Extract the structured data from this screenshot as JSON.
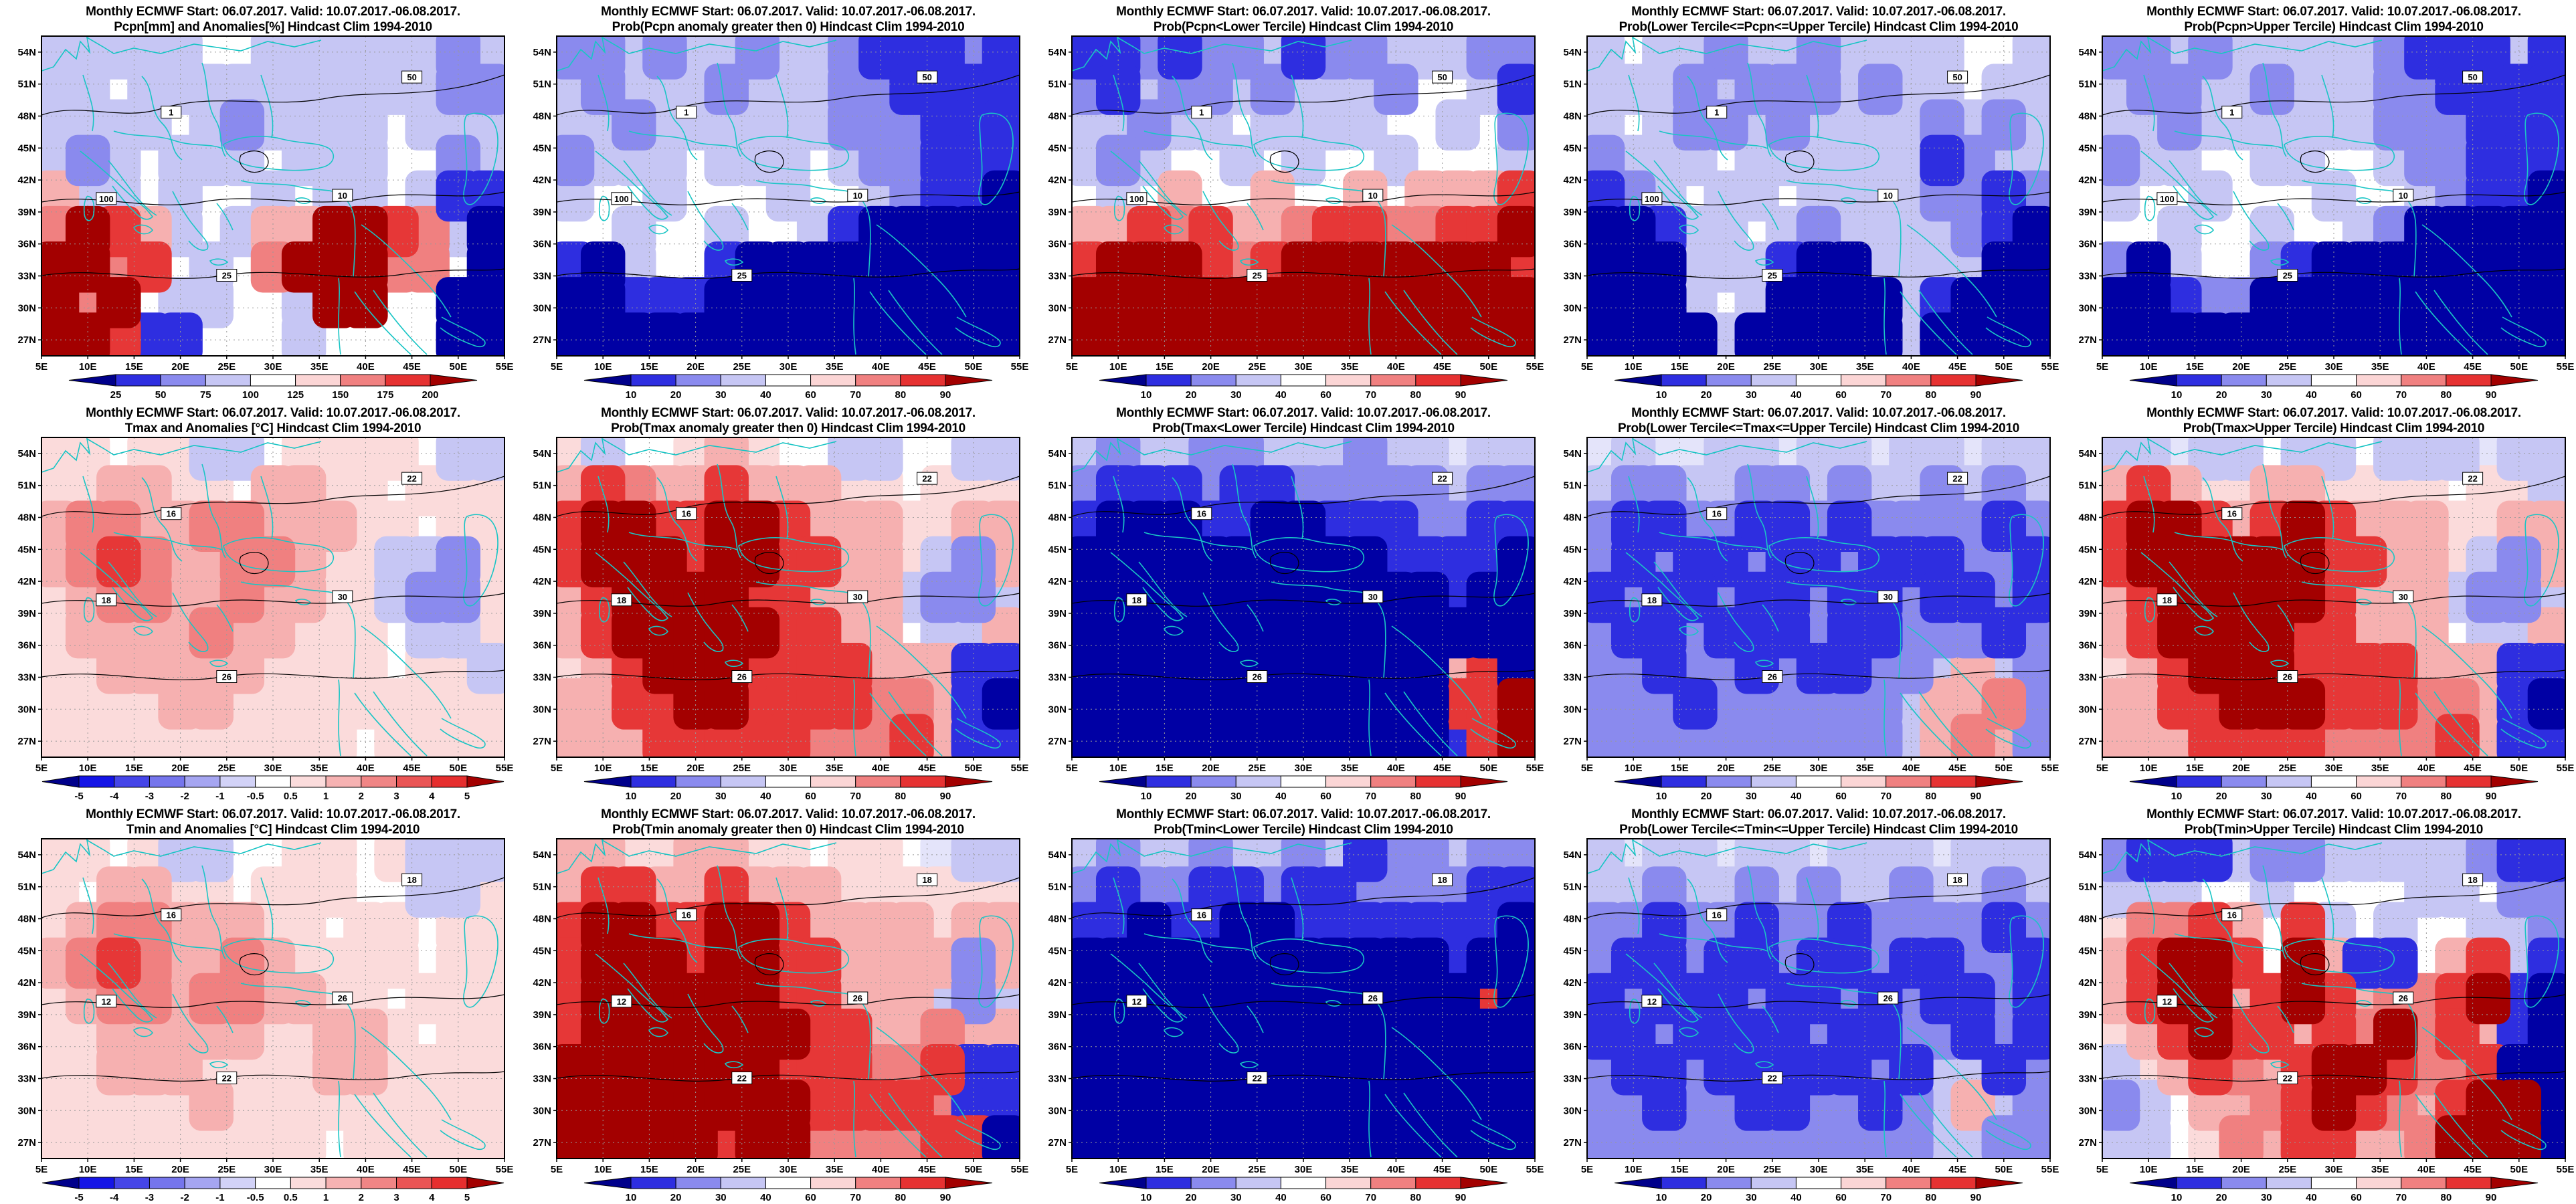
{
  "header_title": "Monthly ECMWF Start: 06.07.2017. Valid: 10.07.2017.-06.08.2017.",
  "axes": {
    "lat_ticks": [
      "54N",
      "51N",
      "48N",
      "45N",
      "42N",
      "39N",
      "36N",
      "33N",
      "30N",
      "27N"
    ],
    "lon_ticks": [
      "5E",
      "10E",
      "15E",
      "20E",
      "25E",
      "30E",
      "35E",
      "40E",
      "45E",
      "50E",
      "55E"
    ]
  },
  "colors": {
    "coastline": "#1AC5C5",
    "graticule": "#999999",
    "contour": "#000000"
  },
  "palette": {
    ".": "#FFFFFF",
    "a": "#E4E4FA",
    "b": "#C6C6F4",
    "c": "#8A8AEE",
    "d": "#2E2EE0",
    "e": "#0000A4",
    "p": "#FBDBDB",
    "q": "#F6B0B0",
    "r": "#F08080",
    "s": "#E63737",
    "t": "#A30000"
  },
  "colorbars": {
    "pcpn": {
      "ticks": [
        "25",
        "50",
        "75",
        "100",
        "125",
        "150",
        "175",
        "200"
      ],
      "segment_colors": [
        "#2E2EE0",
        "#8A8AEE",
        "#C6C6F4",
        "#FFFFFF",
        "#FBD5D5",
        "#F08080",
        "#E63232"
      ],
      "arrow_left": "#00008B",
      "arrow_right": "#A30000"
    },
    "prob": {
      "ticks": [
        "10",
        "20",
        "30",
        "40",
        "60",
        "70",
        "80",
        "90"
      ],
      "segment_colors": [
        "#2E2EE0",
        "#8A8AEE",
        "#C6C6F4",
        "#FFFFFF",
        "#FBD5D5",
        "#F08080",
        "#E63232"
      ],
      "arrow_left": "#00008B",
      "arrow_right": "#A30000"
    },
    "temp": {
      "ticks": [
        "-5",
        "-4",
        "-3",
        "-2",
        "-1",
        "-0.5",
        "0.5",
        "1",
        "2",
        "3",
        "4",
        "5"
      ],
      "segment_colors": [
        "#1414E6",
        "#4545E8",
        "#7575EC",
        "#A5A5F1",
        "#D2D2F7",
        "#FFFFFF",
        "#FBDCDC",
        "#F6B2B2",
        "#F08585",
        "#EA5555",
        "#E62E2E"
      ],
      "arrow_left": "#00008B",
      "arrow_right": "#A30000"
    }
  },
  "panels": [
    {
      "subtitle": "Pcpn[mm] and Anomalies[%] Hindcast Clim 1994-2010",
      "colorbar": "pcpn",
      "contour_labels": [
        "50",
        "100",
        "25",
        "10",
        "1"
      ],
      "field": [
        "bbbbb..bbbbbbcb",
        "bb.bbbbbbbbbbcc",
        "bbbb.bcbbbb.bbb",
        "bcb.bbb.bbb..cb",
        "qbb.b..b.bb.bdd",
        "rtsqb.bqqttsrbe",
        "ttrs.b.rtttrr.e",
        "trt.bb..btt..ee",
        "ttsdd...b....ee"
      ]
    },
    {
      "subtitle": "Prob(Pcpn anomaly greater then 0) Hindcast Clim 1994-2010",
      "colorbar": "prob",
      "contour_labels": [
        "50",
        "100",
        "25",
        "10",
        "1"
      ],
      "field": [
        "ccbcbbcbbcdddcd",
        "bcbbbcbbbccdddd",
        "bbcbbbbbbcccddd",
        "cbbb.bbb.bccddd",
        "b..b...b..bcdde",
        "..b..b..bdeeeee",
        "deb..deeeeeeeee",
        "eedddeeeeeeeeee",
        "eeeeeeeeeeeeeee"
      ]
    },
    {
      "subtitle": "Prob(Pcpn<Lower Tercile) Hindcast Clim 1994-2010",
      "colorbar": "prob",
      "contour_labels": [
        "50",
        "100",
        "25",
        "10",
        "1"
      ],
      "field": [
        "ddcdccbdccbbbcc",
        "cdbccbcbbbc..bd",
        "bbcbb.bbbb..b.c",
        "bcb..b.b..b...b",
        ".b.q..q..q.qqqs",
        "qqsrsqqrssrrsst",
        "stttsrsttttttts",
        "ttttttttttttttt",
        "ttttttttttttttt"
      ]
    },
    {
      "subtitle": "Prob(Lower Tercile<=Pcpn<=Upper Tercile) Hindcast Clim 1994-2010",
      "colorbar": "prob",
      "contour_labels": [
        "50",
        "100",
        "25",
        "10",
        "1"
      ],
      "field": [
        "b.bbcbbcbbbb..b",
        "bbbcbcccbcbb.bb",
        "b.bccbcbbbbcbcb",
        "cbbb.bbbbbbdcbb",
        "dcb.bb.bbbbccdc",
        "eedbb.bcbbbbcde",
        "eeebbbdeebbbbee",
        "eeeb.beeeebdeee",
        "eeeebeeeeebeeee"
      ]
    },
    {
      "subtitle": "Prob(Pcpn>Upper Tercile) Hindcast Clim 1994-2010",
      "colorbar": "prob",
      "contour_labels": [
        "50",
        "100",
        "25",
        "10",
        "1"
      ],
      "field": [
        "ccbcbbbbbcdddbd",
        "bccbbcbbbccdddd",
        "bbcbbbbbbcccddd",
        "cbb..bb..bccddd",
        "b..b...b..bcdde",
        "..b..b..bceeeee",
        "ceb..cdeeeeeeee",
        "eedcceeeeeeeeee",
        "eeeeeeeeeeeeeee"
      ]
    },
    {
      "subtitle": "Tmax and Anomalies [°C] Hindcast Clim 1994-2010",
      "colorbar": "temp",
      "contour_labels": [
        "22",
        "18",
        "26",
        "30",
        "16"
      ],
      "field": [
        "pp.ppbb.pppp.bb",
        "ppqqpp.qqpp.ppp",
        "qrrqqrrqqqpp.pp",
        "qrsrqqrrqppbbcp",
        "pqrrqqrqqppbccp",
        "pqqqqrqqppp.bbp",
        "ppqqqqqpppp.ppb",
        "ppppqqppppppppp",
        "pppppppppp.pppp"
      ]
    },
    {
      "subtitle": "Prob(Tmax anomaly greater then 0) Hindcast Clim 1994-2010",
      "colorbar": "prob",
      "contour_labels": [
        "22",
        "18",
        "26",
        "30",
        "16"
      ],
      "field": [
        "pb..pqp..bb..bb",
        "qsrqqsqqqpp.ppp",
        "sttssttsqqqppqq",
        "stttsttssqqpbcq",
        "qsttttssqqqbccb",
        "qstttttssqq.bbq",
        "pqstttssssqqqdd",
        "qqssttssssrrqde",
        "qqqsssssrrrsqdd"
      ]
    },
    {
      "subtitle": "Prob(Tmax<Lower Tercile) Hindcast Clim 1994-2010",
      "colorbar": "prob",
      "contour_labels": [
        "22",
        "18",
        "26",
        "30",
        "16"
      ],
      "field": [
        "bcbbccbbbcbbabb",
        "cdddcddcccccbcc",
        "deeeddeedddccdd",
        "eeeeeeeeeedddde",
        "eeeeeeeeeeeedee",
        "eeeeeeeeeeeeeee",
        "eeeeeeeeeeeeqse",
        "eeeeeeeeeeeesst",
        "eeeeeeeeeeeedst"
      ]
    },
    {
      "subtitle": "Prob(Lower Tercile<=Tmax<=Upper Tercile) Hindcast Clim 1994-2010",
      "colorbar": "prob",
      "contour_labels": [
        "22",
        "18",
        "26",
        "30",
        "16"
      ],
      "field": [
        "abaabbabbabbabb",
        "bccbbccbcbbcbcb",
        "cddccddcdccccdc",
        "cdcddcddcdddccd",
        "dcddcddcddcddcd",
        "cddcdddcddcccdc",
        "ccdccdcddccbqbc",
        "cccdccccccbqqrc",
        "ccccccccccbqrqc"
      ]
    },
    {
      "subtitle": "Prob(Tmax>Upper Tercile) Hindcast Clim 1994-2010",
      "colorbar": "prob",
      "contour_labels": [
        "22",
        "18",
        "26",
        "30",
        "16"
      ],
      "field": [
        "bbabb.bb.bbbabb",
        "qsqppqqpppp.ppb",
        "sttsqstsqqqppqq",
        "sttttttssqqpbcq",
        "qstttttsqqqbccb",
        "qsttttssqqq.bbq",
        "pqstttssssqqqdd",
        "qqsstttsssrrqde",
        "qqqssssrrrrsqdd"
      ]
    },
    {
      "subtitle": "Tmin and Anomalies [°C] Hindcast Clim 1994-2010",
      "colorbar": "temp",
      "contour_labels": [
        "18",
        "12",
        "22",
        "26",
        "16"
      ],
      "field": [
        "pp.pbb..pp.pbbb",
        "p.qqpp.ppp..bbp",
        "pqrrqqqpp.pp.pp",
        "qrsrqqrqpppp.pp",
        "pqrrqrrqqpp.ppp",
        "ppqqqqqppqqp.pp",
        "ppqqqppppqqpppp",
        "pppppqppppppppp",
        "ppppppppp.ppppp"
      ]
    },
    {
      "subtitle": "Prob(Tmin anomaly greater then 0) Hindcast Clim 1994-2010",
      "colorbar": "prob",
      "contour_labels": [
        "18",
        "12",
        "22",
        "26",
        "16"
      ],
      "field": [
        "qqppqqpp.pp.abb",
        "qssqqsqqqpppppp",
        "sttssttsqqqqpqq",
        "stttsttssqqqqcq",
        "sttttttssqqqbcb",
        "stttttttssqqrqq",
        "tttttttsssrrsdd",
        "ttttttttssssrdd",
        "tttttsttrrrrsse"
      ]
    },
    {
      "subtitle": "Prob(Tmin<Lower Tercile) Hindcast Clim 1994-2010",
      "colorbar": "prob",
      "contour_labels": [
        "18",
        "12",
        "22",
        "26",
        "16"
      ],
      "field": [
        "bcbbcbbcbdccbcc",
        "cdccddcddccccdd",
        "ddeddeeddddddde",
        "eeeeeeeeeeeedee",
        "eeeeeeeeeeeeese",
        "eeeeeeeeeeeeeee",
        "eeeeeeeeeeeeeee",
        "eeeeeeeeeeeeeee",
        "eeeeeeeeeeeeeee"
      ]
    },
    {
      "subtitle": "Prob(Lower Tercile<=Tmin<=Upper Tercile) Hindcast Clim 1994-2010",
      "colorbar": "prob",
      "contour_labels": [
        "18",
        "12",
        "22",
        "26",
        "16"
      ],
      "field": [
        "babbabbabbbabbb",
        "bbcbbcbcbbcbbcb",
        "ccdccdccdccccdc",
        "cddcddcddcddccd",
        "dcdddcddcdcddcd",
        "ddcddddcddccdcd",
        "cddcdddddcdbbdc",
        "ccdccddccdcbqbc",
        "cccccccccccbbcc"
      ]
    },
    {
      "subtitle": "Prob(Tmin>Upper Tercile) Hindcast Clim 1994-2010",
      "colorbar": "prob",
      "contour_labels": [
        "18",
        "12",
        "22",
        "26",
        "16"
      ],
      "field": [
        "cdddbccbbbbbcdd",
        "bbb..b....bb.cc",
        "prrsq.sb.b..bbc",
        "qstts.tqdd.qsbd",
        "qsttqstsqrrstde",
        "pqstssqsrtrsqde",
        "bpqsrqsttsrrsee",
        "cb.qqrstsrqstte",
        "bb.prqssqqrttte"
      ]
    }
  ]
}
